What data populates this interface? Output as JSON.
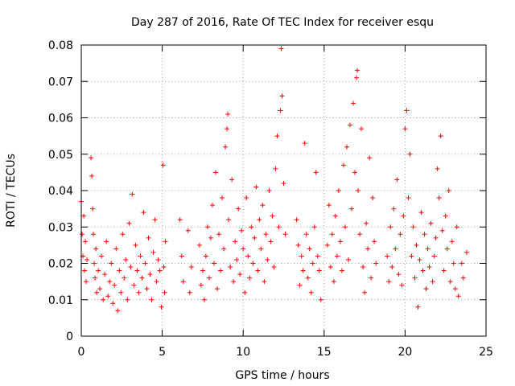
{
  "chart_data": {
    "type": "scatter",
    "title": "Day 287 of 2016, Rate Of TEC Index for receiver esqu",
    "xlabel": "GPS time / hours",
    "ylabel": "ROTI / TECUs",
    "xlim": [
      0,
      25
    ],
    "ylim": [
      0,
      0.08
    ],
    "xticks": [
      0,
      5,
      10,
      15,
      20,
      25
    ],
    "xtick_labels": [
      "0",
      "5",
      "10",
      "15",
      "20",
      "25"
    ],
    "yticks": [
      0,
      0.01,
      0.02,
      0.03,
      0.04,
      0.05,
      0.06,
      0.07,
      0.08
    ],
    "ytick_labels": [
      "0",
      "0.01",
      "0.02",
      "0.03",
      "0.04",
      "0.05",
      "0.06",
      "0.07",
      "0.08"
    ],
    "grid": true,
    "marker": "+",
    "series": [
      {
        "name": "ROTI",
        "color": "#ff0000",
        "points": [
          [
            0.0,
            0.037
          ],
          [
            0.05,
            0.028
          ],
          [
            0.1,
            0.022
          ],
          [
            0.15,
            0.033
          ],
          [
            0.2,
            0.018
          ],
          [
            0.25,
            0.026
          ],
          [
            0.3,
            0.015
          ],
          [
            0.35,
            0.021
          ],
          [
            0.6,
            0.049
          ],
          [
            0.65,
            0.044
          ],
          [
            0.7,
            0.035
          ],
          [
            0.75,
            0.028
          ],
          [
            0.8,
            0.02
          ],
          [
            0.85,
            0.016
          ],
          [
            0.9,
            0.024
          ],
          [
            0.95,
            0.012
          ],
          [
            1.05,
            0.018
          ],
          [
            1.15,
            0.013
          ],
          [
            1.25,
            0.022
          ],
          [
            1.35,
            0.01
          ],
          [
            1.45,
            0.017
          ],
          [
            1.55,
            0.026
          ],
          [
            1.65,
            0.011
          ],
          [
            1.75,
            0.015
          ],
          [
            1.85,
            0.02
          ],
          [
            1.95,
            0.009
          ],
          [
            2.05,
            0.014
          ],
          [
            2.15,
            0.024
          ],
          [
            2.25,
            0.007
          ],
          [
            2.35,
            0.018
          ],
          [
            2.45,
            0.012
          ],
          [
            2.55,
            0.028
          ],
          [
            2.65,
            0.016
          ],
          [
            2.75,
            0.021
          ],
          [
            2.85,
            0.01
          ],
          [
            2.95,
            0.031
          ],
          [
            3.05,
            0.019
          ],
          [
            3.15,
            0.039
          ],
          [
            3.25,
            0.014
          ],
          [
            3.35,
            0.025
          ],
          [
            3.45,
            0.018
          ],
          [
            3.55,
            0.012
          ],
          [
            3.65,
            0.022
          ],
          [
            3.75,
            0.016
          ],
          [
            3.85,
            0.034
          ],
          [
            3.95,
            0.02
          ],
          [
            4.05,
            0.013
          ],
          [
            4.15,
            0.027
          ],
          [
            4.25,
            0.017
          ],
          [
            4.35,
            0.01
          ],
          [
            4.45,
            0.023
          ],
          [
            4.55,
            0.032
          ],
          [
            4.65,
            0.015
          ],
          [
            4.75,
            0.021
          ],
          [
            4.85,
            0.018
          ],
          [
            4.95,
            0.008
          ],
          [
            5.05,
            0.047
          ],
          [
            5.1,
            0.019
          ],
          [
            5.15,
            0.012
          ],
          [
            5.2,
            0.026
          ],
          [
            6.1,
            0.032
          ],
          [
            6.2,
            0.022
          ],
          [
            6.3,
            0.015
          ],
          [
            6.6,
            0.029
          ],
          [
            6.7,
            0.012
          ],
          [
            6.8,
            0.019
          ],
          [
            7.3,
            0.025
          ],
          [
            7.4,
            0.014
          ],
          [
            7.5,
            0.018
          ],
          [
            7.6,
            0.01
          ],
          [
            7.7,
            0.022
          ],
          [
            7.8,
            0.03
          ],
          [
            7.9,
            0.016
          ],
          [
            8.0,
            0.027
          ],
          [
            8.1,
            0.036
          ],
          [
            8.2,
            0.02
          ],
          [
            8.3,
            0.045
          ],
          [
            8.4,
            0.013
          ],
          [
            8.5,
            0.028
          ],
          [
            8.6,
            0.018
          ],
          [
            8.7,
            0.038
          ],
          [
            8.8,
            0.024
          ],
          [
            8.9,
            0.052
          ],
          [
            9.0,
            0.057
          ],
          [
            9.05,
            0.061
          ],
          [
            9.1,
            0.032
          ],
          [
            9.2,
            0.019
          ],
          [
            9.3,
            0.043
          ],
          [
            9.4,
            0.015
          ],
          [
            9.5,
            0.026
          ],
          [
            9.6,
            0.021
          ],
          [
            9.7,
            0.035
          ],
          [
            9.8,
            0.017
          ],
          [
            9.9,
            0.029
          ],
          [
            10.0,
            0.024
          ],
          [
            10.1,
            0.012
          ],
          [
            10.2,
            0.038
          ],
          [
            10.3,
            0.022
          ],
          [
            10.4,
            0.016
          ],
          [
            10.5,
            0.03
          ],
          [
            10.6,
            0.02
          ],
          [
            10.7,
            0.027
          ],
          [
            10.8,
            0.041
          ],
          [
            10.9,
            0.018
          ],
          [
            11.0,
            0.032
          ],
          [
            11.1,
            0.024
          ],
          [
            11.2,
            0.036
          ],
          [
            11.3,
            0.015
          ],
          [
            11.4,
            0.028
          ],
          [
            11.5,
            0.021
          ],
          [
            11.6,
            0.04
          ],
          [
            11.7,
            0.026
          ],
          [
            11.8,
            0.033
          ],
          [
            11.9,
            0.019
          ],
          [
            12.0,
            0.046
          ],
          [
            12.1,
            0.055
          ],
          [
            12.2,
            0.03
          ],
          [
            12.3,
            0.062
          ],
          [
            12.35,
            0.079
          ],
          [
            12.4,
            0.066
          ],
          [
            12.5,
            0.042
          ],
          [
            12.6,
            0.028
          ],
          [
            13.3,
            0.032
          ],
          [
            13.4,
            0.025
          ],
          [
            13.5,
            0.014
          ],
          [
            13.6,
            0.022
          ],
          [
            13.7,
            0.018
          ],
          [
            13.8,
            0.053
          ],
          [
            13.9,
            0.028
          ],
          [
            14.0,
            0.016
          ],
          [
            14.1,
            0.024
          ],
          [
            14.2,
            0.012
          ],
          [
            14.3,
            0.02
          ],
          [
            14.4,
            0.03
          ],
          [
            14.5,
            0.045
          ],
          [
            14.6,
            0.022
          ],
          [
            14.7,
            0.018
          ],
          [
            14.8,
            0.01
          ],
          [
            15.2,
            0.025
          ],
          [
            15.3,
            0.036
          ],
          [
            15.4,
            0.019
          ],
          [
            15.5,
            0.028
          ],
          [
            15.6,
            0.015
          ],
          [
            15.7,
            0.033
          ],
          [
            15.8,
            0.022
          ],
          [
            15.9,
            0.04
          ],
          [
            16.0,
            0.026
          ],
          [
            16.1,
            0.018
          ],
          [
            16.2,
            0.047
          ],
          [
            16.3,
            0.03
          ],
          [
            16.4,
            0.052
          ],
          [
            16.5,
            0.021
          ],
          [
            16.6,
            0.058
          ],
          [
            16.7,
            0.035
          ],
          [
            16.8,
            0.064
          ],
          [
            16.9,
            0.045
          ],
          [
            17.0,
            0.071
          ],
          [
            17.05,
            0.073
          ],
          [
            17.1,
            0.04
          ],
          [
            17.2,
            0.028
          ],
          [
            17.3,
            0.057
          ],
          [
            17.4,
            0.019
          ],
          [
            17.5,
            0.012
          ],
          [
            17.6,
            0.031
          ],
          [
            17.7,
            0.024
          ],
          [
            17.8,
            0.049
          ],
          [
            17.9,
            0.016
          ],
          [
            18.0,
            0.038
          ],
          [
            18.1,
            0.026
          ],
          [
            18.2,
            0.02
          ],
          [
            18.9,
            0.022
          ],
          [
            19.0,
            0.015
          ],
          [
            19.1,
            0.03
          ],
          [
            19.2,
            0.019
          ],
          [
            19.3,
            0.035
          ],
          [
            19.4,
            0.024
          ],
          [
            19.5,
            0.043
          ],
          [
            19.6,
            0.017
          ],
          [
            19.7,
            0.028
          ],
          [
            19.8,
            0.014
          ],
          [
            19.9,
            0.033
          ],
          [
            20.0,
            0.057
          ],
          [
            20.1,
            0.062
          ],
          [
            20.2,
            0.038
          ],
          [
            20.3,
            0.05
          ],
          [
            20.4,
            0.022
          ],
          [
            20.5,
            0.03
          ],
          [
            20.6,
            0.016
          ],
          [
            20.7,
            0.025
          ],
          [
            20.8,
            0.008
          ],
          [
            20.9,
            0.021
          ],
          [
            21.0,
            0.034
          ],
          [
            21.1,
            0.018
          ],
          [
            21.2,
            0.028
          ],
          [
            21.3,
            0.013
          ],
          [
            21.4,
            0.024
          ],
          [
            21.5,
            0.019
          ],
          [
            21.6,
            0.031
          ],
          [
            21.7,
            0.015
          ],
          [
            21.8,
            0.022
          ],
          [
            21.9,
            0.027
          ],
          [
            22.0,
            0.046
          ],
          [
            22.1,
            0.038
          ],
          [
            22.2,
            0.055
          ],
          [
            22.3,
            0.029
          ],
          [
            22.4,
            0.018
          ],
          [
            22.5,
            0.033
          ],
          [
            22.6,
            0.024
          ],
          [
            22.7,
            0.04
          ],
          [
            22.8,
            0.015
          ],
          [
            22.9,
            0.026
          ],
          [
            23.0,
            0.02
          ],
          [
            23.1,
            0.013
          ],
          [
            23.2,
            0.03
          ],
          [
            23.3,
            0.011
          ],
          [
            23.5,
            0.02
          ],
          [
            23.6,
            0.016
          ],
          [
            23.8,
            0.023
          ]
        ]
      }
    ]
  }
}
